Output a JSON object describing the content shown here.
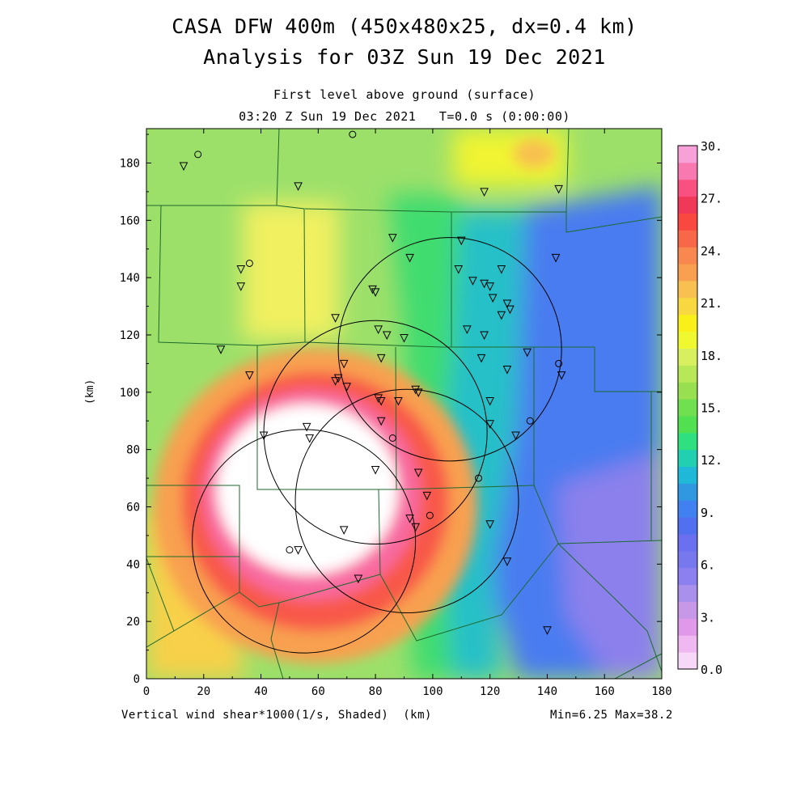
{
  "title_line1": "CASA DFW 400m (450x480x25, dx=0.4 km)",
  "title_line2": "Analysis for 03Z Sun 19 Dec 2021",
  "subtitle_line1": "First level above ground (surface)",
  "subtitle_line2": "03:20 Z Sun 19 Dec 2021   T=0.0 s (0:00:00)",
  "footer_left": "Vertical wind shear*1000(1/s, Shaded)  (km)",
  "footer_right": "Min=6.25 Max=38.2",
  "chart_data": {
    "type": "heatmap",
    "xlabel": "",
    "ylabel": "(km)",
    "xlim": [
      0,
      180
    ],
    "ylim": [
      0,
      192
    ],
    "x_ticks": [
      "0",
      "20",
      "40",
      "60",
      "80",
      "100",
      "120",
      "140",
      "160",
      "180"
    ],
    "y_ticks": [
      "0",
      "20",
      "40",
      "60",
      "80",
      "100",
      "120",
      "140",
      "160",
      "180"
    ],
    "colorbar_labels": [
      "0.0",
      "3.",
      "6.",
      "9.",
      "12.",
      "15.",
      "18.",
      "21.",
      "24.",
      "27.",
      "30."
    ],
    "colorbar_colors": [
      "#f8d8f8",
      "#f0b8f0",
      "#e098e8",
      "#c898e8",
      "#a890ec",
      "#8c80f0",
      "#7878ee",
      "#6a70f0",
      "#5070f0",
      "#4080f0",
      "#3098e0",
      "#20b8d8",
      "#20d0b0",
      "#30e080",
      "#50e050",
      "#70e050",
      "#98e050",
      "#b8e858",
      "#d8f060",
      "#f0f830",
      "#f8f018",
      "#f8d840",
      "#f8c050",
      "#f8a050",
      "#f88850",
      "#f86848",
      "#f84840",
      "#f03858",
      "#f85080",
      "#f878b0",
      "#f8a0d8"
    ],
    "value_range": [
      6.25,
      38.2
    ],
    "radar_circles": [
      {
        "x": 55,
        "y": 48,
        "r": 39
      },
      {
        "x": 80,
        "y": 86,
        "r": 39
      },
      {
        "x": 106,
        "y": 115,
        "r": 39
      },
      {
        "x": 91,
        "y": 62,
        "r": 39
      }
    ],
    "stations_triangle": [
      [
        13,
        179
      ],
      [
        53,
        172
      ],
      [
        118,
        170
      ],
      [
        144,
        171
      ],
      [
        33,
        143
      ],
      [
        33,
        137
      ],
      [
        66,
        126
      ],
      [
        79,
        136
      ],
      [
        80,
        135
      ],
      [
        86,
        154
      ],
      [
        92,
        147
      ],
      [
        110,
        153
      ],
      [
        109,
        143
      ],
      [
        114,
        139
      ],
      [
        118,
        138
      ],
      [
        120,
        137
      ],
      [
        121,
        133
      ],
      [
        124,
        143
      ],
      [
        126,
        131
      ],
      [
        127,
        129
      ],
      [
        124,
        127
      ],
      [
        81,
        122
      ],
      [
        84,
        120
      ],
      [
        90,
        119
      ],
      [
        112,
        122
      ],
      [
        118,
        120
      ],
      [
        26,
        115
      ],
      [
        69,
        110
      ],
      [
        82,
        112
      ],
      [
        117,
        112
      ],
      [
        126,
        108
      ],
      [
        133,
        114
      ],
      [
        145,
        106
      ],
      [
        36,
        106
      ],
      [
        67,
        105
      ],
      [
        66,
        104
      ],
      [
        70,
        102
      ],
      [
        81,
        98
      ],
      [
        82,
        97
      ],
      [
        94,
        101
      ],
      [
        95,
        100
      ],
      [
        88,
        97
      ],
      [
        120,
        97
      ],
      [
        82,
        90
      ],
      [
        120,
        89
      ],
      [
        129,
        85
      ],
      [
        41,
        85
      ],
      [
        56,
        88
      ],
      [
        57,
        84
      ],
      [
        80,
        73
      ],
      [
        95,
        72
      ],
      [
        98,
        64
      ],
      [
        92,
        56
      ],
      [
        94,
        53
      ],
      [
        120,
        54
      ],
      [
        126,
        41
      ],
      [
        69,
        52
      ],
      [
        53,
        45
      ],
      [
        74,
        35
      ],
      [
        140,
        17
      ],
      [
        143,
        147
      ]
    ],
    "stations_circle": [
      [
        18,
        183
      ],
      [
        72,
        190
      ],
      [
        36,
        145
      ],
      [
        86,
        84
      ],
      [
        116,
        70
      ],
      [
        99,
        57
      ],
      [
        50,
        45
      ],
      [
        144,
        110
      ],
      [
        134,
        90
      ]
    ],
    "grid": false
  }
}
